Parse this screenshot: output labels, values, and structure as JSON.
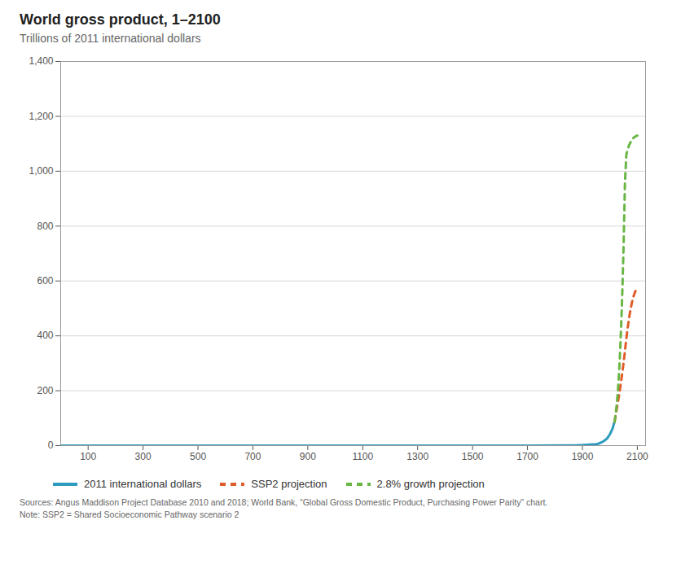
{
  "chart_data": {
    "type": "line",
    "title": "World gross product, 1–2100",
    "subtitle": "Trillions of 2011 international dollars",
    "annotations": [
      "Sources: Angus Maddison Project Database 2010 and 2018; World Bank, “Global Gross Domestic Product, Purchasing Power Parity” chart.",
      "Note: SSP2 = Shared Socioeconomic Pathway scenario 2"
    ],
    "xlim": [
      0,
      2130
    ],
    "ylim": [
      0,
      1400
    ],
    "xticks": [
      100,
      300,
      500,
      700,
      900,
      1100,
      1300,
      1500,
      1700,
      1900,
      2100
    ],
    "yticks": [
      0,
      200,
      400,
      600,
      800,
      {
        "value": 1000,
        "label": "1,000"
      },
      {
        "value": 1200,
        "label": "1,200"
      },
      {
        "value": 1400,
        "label": "1,400"
      }
    ],
    "grid": "y",
    "legend": "bottom",
    "series": [
      {
        "name": "2011 international dollars",
        "color": "#2e9bbf",
        "line_style": "solid",
        "x": [
          1,
          200,
          400,
          600,
          700,
          800,
          900,
          1000,
          1100,
          1200,
          1300,
          1400,
          1500,
          1600,
          1700,
          1820,
          1870,
          1900,
          1913,
          1950,
          1960,
          1970,
          1980,
          1990,
          2000,
          2010,
          2017
        ],
        "values": [
          0.105,
          0.11,
          0.115,
          0.12,
          0.13,
          0.135,
          0.14,
          0.145,
          0.15,
          0.155,
          0.165,
          0.175,
          0.18,
          0.185,
          0.2,
          0.7,
          1.1,
          2.0,
          2.7,
          5.3,
          7.5,
          12.0,
          18.0,
          26.0,
          41.0,
          63.0,
          87.0
        ]
      },
      {
        "name": "SSP2 projection",
        "color": "#e05c2a",
        "line_style": "dashed",
        "x": [
          2017,
          2018,
          2019,
          2020,
          2021,
          2022,
          2023,
          2024,
          2025,
          2026,
          2027,
          2028,
          2029,
          2030,
          2032,
          2034,
          2036,
          2038,
          2040,
          2043,
          2046,
          2050,
          2055,
          2060,
          2065,
          2070,
          2075,
          2080,
          2085,
          2090,
          2095,
          2100
        ],
        "values": [
          87,
          92,
          97,
          103,
          109,
          115,
          121,
          127,
          133,
          139,
          145,
          151,
          157,
          163,
          175,
          188,
          200,
          214,
          228,
          249,
          271,
          303,
          345,
          390,
          430,
          465,
          495,
          520,
          540,
          555,
          568,
          580
        ]
      },
      {
        "name": "2.8% growth projection",
        "color": "#6ab645",
        "line_style": "dashed",
        "x": [
          2017,
          2018,
          2019,
          2020,
          2021,
          2022,
          2023,
          2024,
          2025,
          2026,
          2027,
          2028,
          2029,
          2030,
          2032,
          2034,
          2036,
          2038,
          2040,
          2043,
          2046,
          2050,
          2055,
          2060,
          2065,
          2070,
          2075,
          2080,
          2085,
          2090,
          2095,
          2100
        ],
        "values": [
          87,
          93,
          100,
          107,
          115,
          123,
          132,
          141,
          151,
          162,
          173,
          185,
          198,
          212,
          242,
          276,
          314,
          358,
          408,
          487,
          581,
          730,
          958,
          1060,
          1080,
          1095,
          1105,
          1115,
          1120,
          1125,
          1128,
          1130
        ]
      }
    ]
  }
}
